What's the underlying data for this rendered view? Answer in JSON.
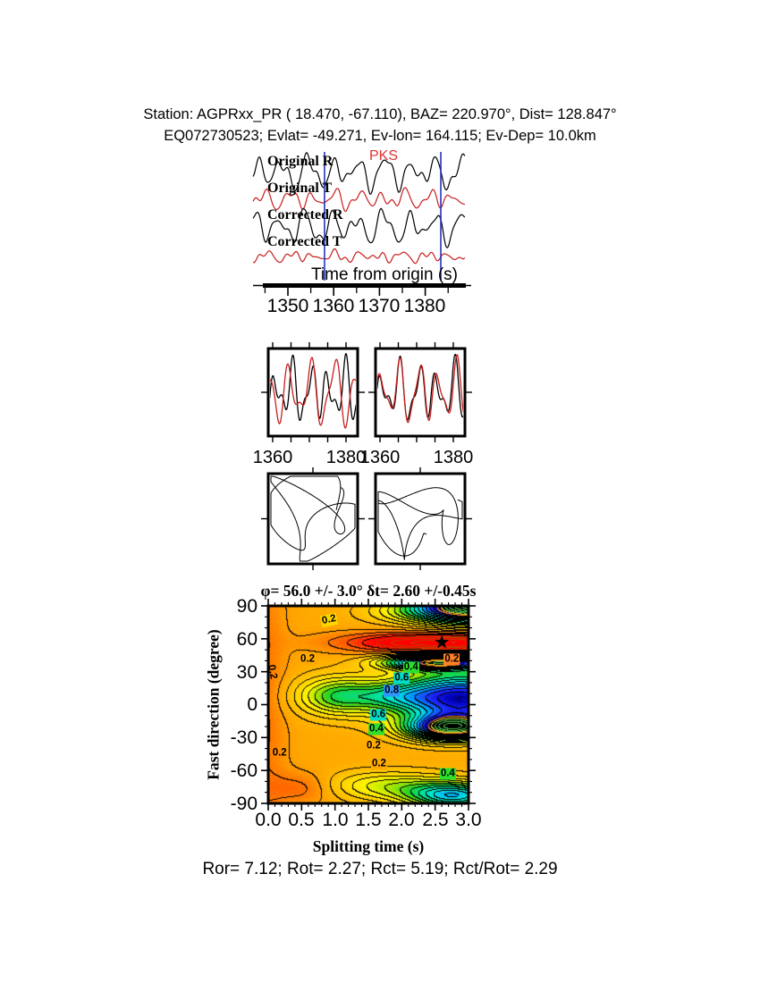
{
  "header": {
    "line1": "Station: AGPRxx_PR (  18.470,  -67.110), BAZ=  220.970°, Dist=  128.847°",
    "line2": "EQ072730523; Evlat= -49.271, Ev-lon= 164.115; Ev-Dep= 10.0km"
  },
  "footer": {
    "text": "Ror= 7.12; Rot= 2.27; Rct= 5.19; Rct/Rot= 2.29"
  },
  "chart_data": {
    "type": "multi-panel shear-wave splitting analysis",
    "waveforms": {
      "type": "line",
      "xlabel": "Time from origin (s)",
      "x_ticks": [
        1350,
        1360,
        1370,
        1380
      ],
      "x_tick_labels": [
        "1350",
        "1360",
        "1370",
        "1380"
      ],
      "x_minor_ticks": [
        1345,
        1355,
        1365,
        1375,
        1385
      ],
      "x_range_s": [
        1342.4,
        1388.7
      ],
      "phase": "PKS",
      "window_s": [
        1358.0,
        1383.4
      ],
      "marker_color": "#2233bb",
      "series": [
        {
          "name": "Original R",
          "color": "#000000",
          "harmonics": [
            [
              13,
              5.6,
              2.9
            ],
            [
              6,
              3.2,
              0.8
            ],
            [
              5,
              8.5,
              4.4
            ],
            [
              2.5,
              2.1,
              1.5
            ]
          ]
        },
        {
          "name": "Original T",
          "color": "#c81e1e",
          "harmonics": [
            [
              7,
              5.1,
              1.2
            ],
            [
              4,
              3.0,
              4.0
            ],
            [
              3,
              7.8,
              0.3
            ],
            [
              2,
              2.3,
              2.2
            ]
          ]
        },
        {
          "name": "Corrected R",
          "color": "#000000",
          "harmonics": [
            [
              13,
              5.7,
              3.6
            ],
            [
              6,
              3.3,
              1.4
            ],
            [
              4.5,
              8.8,
              5.6
            ],
            [
              2.5,
              2.2,
              0.2
            ]
          ]
        },
        {
          "name": "Corrected T",
          "color": "#c81e1e",
          "harmonics": [
            [
              3.5,
              4.9,
              0.8
            ],
            [
              2.5,
              2.7,
              3.4
            ],
            [
              2,
              7.4,
              5.9
            ],
            [
              1.5,
              2.1,
              1.9
            ]
          ]
        }
      ]
    },
    "window_traces": {
      "type": "line",
      "x_ticks": [
        1360,
        1380
      ],
      "panels": [
        {
          "x_tick_labels": [
            "1360",
            "1380"
          ],
          "series": [
            {
              "color": "#000000",
              "harmonics": [
                [
                  22,
                  4.8,
                  0.6
                ],
                [
                  14,
                  2.9,
                  2.1
                ],
                [
                  8,
                  7.5,
                  4.0
                ]
              ]
            },
            {
              "color": "#c81e1e",
              "harmonics": [
                [
                  28,
                  6.2,
                  3.4
                ],
                [
                  12,
                  3.5,
                  0.9
                ],
                [
                  6,
                  9.0,
                  2.0
                ]
              ]
            }
          ]
        },
        {
          "x_tick_labels": [
            "1360",
            "1380"
          ],
          "series": [
            {
              "color": "#000000",
              "harmonics": [
                [
                  22,
                  5.0,
                  0.9
                ],
                [
                  13,
                  3.0,
                  2.5
                ],
                [
                  8,
                  7.8,
                  4.2
                ]
              ]
            },
            {
              "color": "#c81e1e",
              "harmonics": [
                [
                  26,
                  5.2,
                  1.25
                ],
                [
                  10,
                  3.1,
                  2.9
                ],
                [
                  7,
                  8.2,
                  4.8
                ]
              ]
            }
          ]
        }
      ]
    },
    "particle_motion": {
      "type": "line",
      "panels": [
        {
          "x_harmonics": [
            [
              40,
              2.1,
              0.4
            ],
            [
              16,
              5.3,
              1.8
            ]
          ],
          "y_harmonics": [
            [
              36,
              3.2,
              2.1
            ],
            [
              20,
              1.3,
              0.2
            ]
          ]
        },
        {
          "x_harmonics": [
            [
              42,
              1.9,
              1.1
            ],
            [
              15,
              4.6,
              0.3
            ]
          ],
          "y_harmonics": [
            [
              26,
              2.8,
              0.9
            ],
            [
              14,
              6.1,
              2.5
            ],
            [
              10,
              1.2,
              4.0
            ]
          ]
        }
      ]
    },
    "energy_map": {
      "type": "heatmap",
      "title": "φ= 56.0 +/- 3.0° δt= 2.60 +/-0.45s",
      "xlabel": "Splitting time (s)",
      "ylabel": "Fast direction (degree)",
      "xlim": [
        0.0,
        3.0
      ],
      "ylim": [
        -90,
        90
      ],
      "x_ticks": [
        0.0,
        0.5,
        1.0,
        1.5,
        2.0,
        2.5,
        3.0
      ],
      "x_tick_labels": [
        "0.0",
        "0.5",
        "1.0",
        "1.5",
        "2.0",
        "2.5",
        "3.0"
      ],
      "x_minor_step": 0.1,
      "y_ticks": [
        90,
        60,
        30,
        0,
        -30,
        -60,
        -90
      ],
      "y_tick_labels": [
        "90",
        "60",
        "30",
        "0",
        "-30",
        "-60",
        "-90"
      ],
      "y_minor_step": 10,
      "best_solution": {
        "phi_deg": 56.0,
        "phi_err_deg": 3.0,
        "dt_s": 2.6,
        "dt_err_s": 0.45
      },
      "star": {
        "t": 2.6,
        "phi": 56,
        "glyph": "★"
      },
      "contour_interval": 0.05,
      "contour_labels": [
        {
          "text": "0.2",
          "t": 0.91,
          "phi": 77,
          "bg": "#ffd700",
          "rot": -12
        },
        {
          "text": "0.2",
          "t": 0.59,
          "phi": 41,
          "bg": "#ffaa00",
          "rot": 0
        },
        {
          "text": "0.2",
          "t": 2.75,
          "phi": 41,
          "bg": "#ff8228",
          "rot": 0
        },
        {
          "text": "0.4",
          "t": 2.14,
          "phi": 34,
          "bg": "#2ee02e",
          "rot": 0
        },
        {
          "text": "0.6",
          "t": 2.0,
          "phi": 24,
          "bg": "#00dcc8",
          "rot": 0
        },
        {
          "text": "0.8",
          "t": 1.85,
          "phi": 13,
          "bg": "#2e96ff",
          "rot": 0
        },
        {
          "text": "0.2",
          "t": 0.05,
          "phi": 30,
          "bg": "",
          "rot": 80
        },
        {
          "text": "0.6",
          "t": 1.65,
          "phi": -9,
          "bg": "#00dcc8",
          "rot": 0
        },
        {
          "text": "0.4",
          "t": 1.62,
          "phi": -22,
          "bg": "#2ee02e",
          "rot": 0
        },
        {
          "text": "0.2",
          "t": 1.58,
          "phi": -38,
          "bg": "#ffaa00",
          "rot": 0
        },
        {
          "text": "0.2",
          "t": 0.17,
          "phi": -44,
          "bg": "",
          "rot": 0
        },
        {
          "text": "0.2",
          "t": 1.66,
          "phi": -54,
          "bg": "#ffaa00",
          "rot": 0
        },
        {
          "text": "0.4",
          "t": 2.69,
          "phi": -63,
          "bg": "#2ee02e",
          "rot": 0
        }
      ],
      "field": {
        "base": 0.22,
        "gaussians": [
          [
            -0.34,
            2.4,
            1.2,
            57,
            9
          ],
          [
            -0.1,
            3.0,
            0.45,
            57,
            8
          ],
          [
            0.72,
            2.9,
            1.0,
            6,
            24
          ],
          [
            0.75,
            2.55,
            0.75,
            39,
            6.5
          ],
          [
            0.75,
            2.75,
            0.65,
            -21,
            11
          ],
          [
            0.32,
            1.05,
            0.6,
            8,
            17
          ],
          [
            0.18,
            1.9,
            0.55,
            8,
            12
          ],
          [
            0.5,
            2.8,
            0.7,
            -83,
            12
          ],
          [
            0.2,
            1.8,
            0.9,
            -74,
            13
          ],
          [
            -0.1,
            0.5,
            0.5,
            -76,
            14
          ],
          [
            -0.08,
            -0.1,
            0.35,
            0,
            150
          ],
          [
            1.0,
            3.1,
            0.9,
            92,
            16
          ],
          [
            0.12,
            2.3,
            0.8,
            84,
            9
          ]
        ]
      },
      "colormap": [
        [
          0.0,
          255,
          0,
          0
        ],
        [
          0.1,
          255,
          90,
          0
        ],
        [
          0.2,
          255,
          165,
          0
        ],
        [
          0.3,
          255,
          210,
          0
        ],
        [
          0.38,
          255,
          245,
          0
        ],
        [
          0.46,
          160,
          230,
          0
        ],
        [
          0.53,
          30,
          210,
          40
        ],
        [
          0.62,
          0,
          225,
          160
        ],
        [
          0.7,
          0,
          230,
          230
        ],
        [
          0.78,
          0,
          140,
          255
        ],
        [
          0.86,
          30,
          40,
          255
        ],
        [
          0.93,
          0,
          0,
          190
        ],
        [
          0.95,
          0,
          0,
          140
        ]
      ]
    }
  }
}
